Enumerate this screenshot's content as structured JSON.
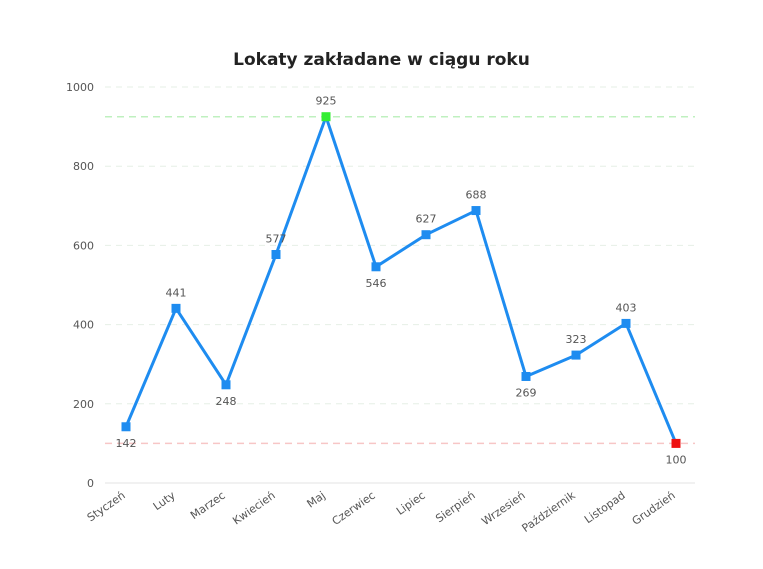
{
  "chart_data": {
    "type": "line",
    "title": "Lokaty zakładane w ciągu roku",
    "xlabel": "",
    "ylabel": "",
    "categories": [
      "Styczeń",
      "Luty",
      "Marzec",
      "Kwiecień",
      "Maj",
      "Czerwiec",
      "Lipiec",
      "Sierpień",
      "Wrzesień",
      "Październik",
      "Listopad",
      "Grudzień"
    ],
    "series": [
      {
        "name": "Lokaty",
        "values": [
          142,
          441,
          248,
          577,
          925,
          546,
          627,
          688,
          269,
          323,
          403,
          100
        ]
      }
    ],
    "ylim": [
      0,
      1000
    ],
    "yticks": [
      "0",
      "200",
      "400",
      "600",
      "800",
      "1000"
    ],
    "grid": true,
    "max_reference_line": 925,
    "min_reference_line": 100,
    "colors": {
      "line": "#1e8cf0",
      "marker": "#1e8cf0",
      "max_marker": "#33ee33",
      "min_marker": "#ee1111",
      "max_line": "#bff0bf",
      "min_line": "#f7c6c6",
      "grid": "#e6efe6"
    }
  }
}
